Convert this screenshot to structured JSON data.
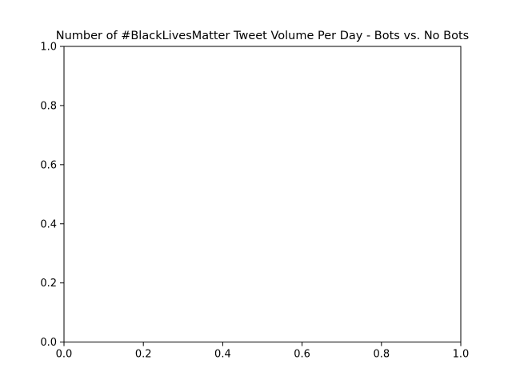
{
  "chart_data": {
    "type": "line",
    "title": "Number of #BlackLivesMatter Tweet Volume Per Day - Bots vs. No Bots",
    "xlabel": "",
    "ylabel": "",
    "xlim": [
      0.0,
      1.0
    ],
    "ylim": [
      0.0,
      1.0
    ],
    "x_ticks": [
      0.0,
      0.2,
      0.4,
      0.6,
      0.8,
      1.0
    ],
    "y_ticks": [
      0.0,
      0.2,
      0.4,
      0.6,
      0.8,
      1.0
    ],
    "x_tick_labels": [
      "0.0",
      "0.2",
      "0.4",
      "0.6",
      "0.8",
      "1.0"
    ],
    "y_tick_labels": [
      "0.0",
      "0.2",
      "0.4",
      "0.6",
      "0.8",
      "1.0"
    ],
    "series": [],
    "grid": false,
    "legend": "none"
  }
}
